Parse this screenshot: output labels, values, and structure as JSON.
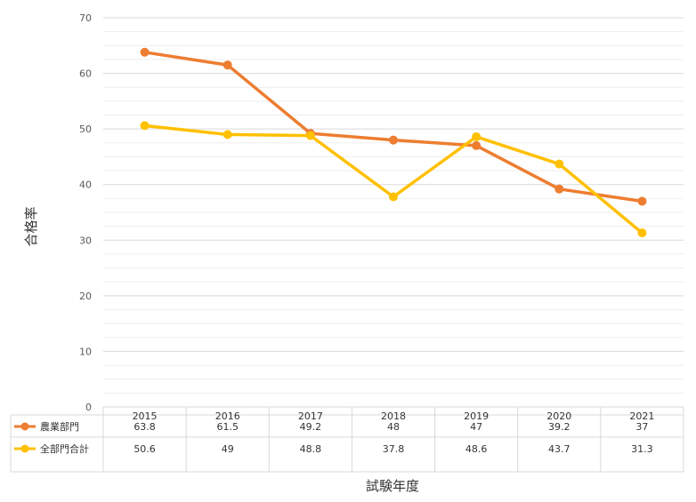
{
  "chart_data": {
    "type": "line",
    "categories": [
      "2015",
      "2016",
      "2017",
      "2018",
      "2019",
      "2020",
      "2021"
    ],
    "series": [
      {
        "name": "農業部門",
        "color": "#ED7D31",
        "values": [
          63.8,
          61.5,
          49.2,
          48,
          47,
          39.2,
          37
        ]
      },
      {
        "name": "全部門合計",
        "color": "#FFC000",
        "values": [
          50.6,
          49,
          48.8,
          37.8,
          48.6,
          43.7,
          31.3
        ]
      }
    ],
    "xlabel": "試験年度",
    "ylabel": "合格率",
    "ylim": [
      0,
      70
    ],
    "yticks": [
      0,
      10,
      20,
      30,
      40,
      50,
      60,
      70
    ],
    "value_labels": {
      "農業部門": [
        "63.8",
        "61.5",
        "49.2",
        "48",
        "47",
        "39.2",
        "37"
      ],
      "全部門合計": [
        "50.6",
        "49",
        "48.8",
        "37.8",
        "48.6",
        "43.7",
        "31.3"
      ]
    },
    "grid": true,
    "legend": "data-table"
  }
}
